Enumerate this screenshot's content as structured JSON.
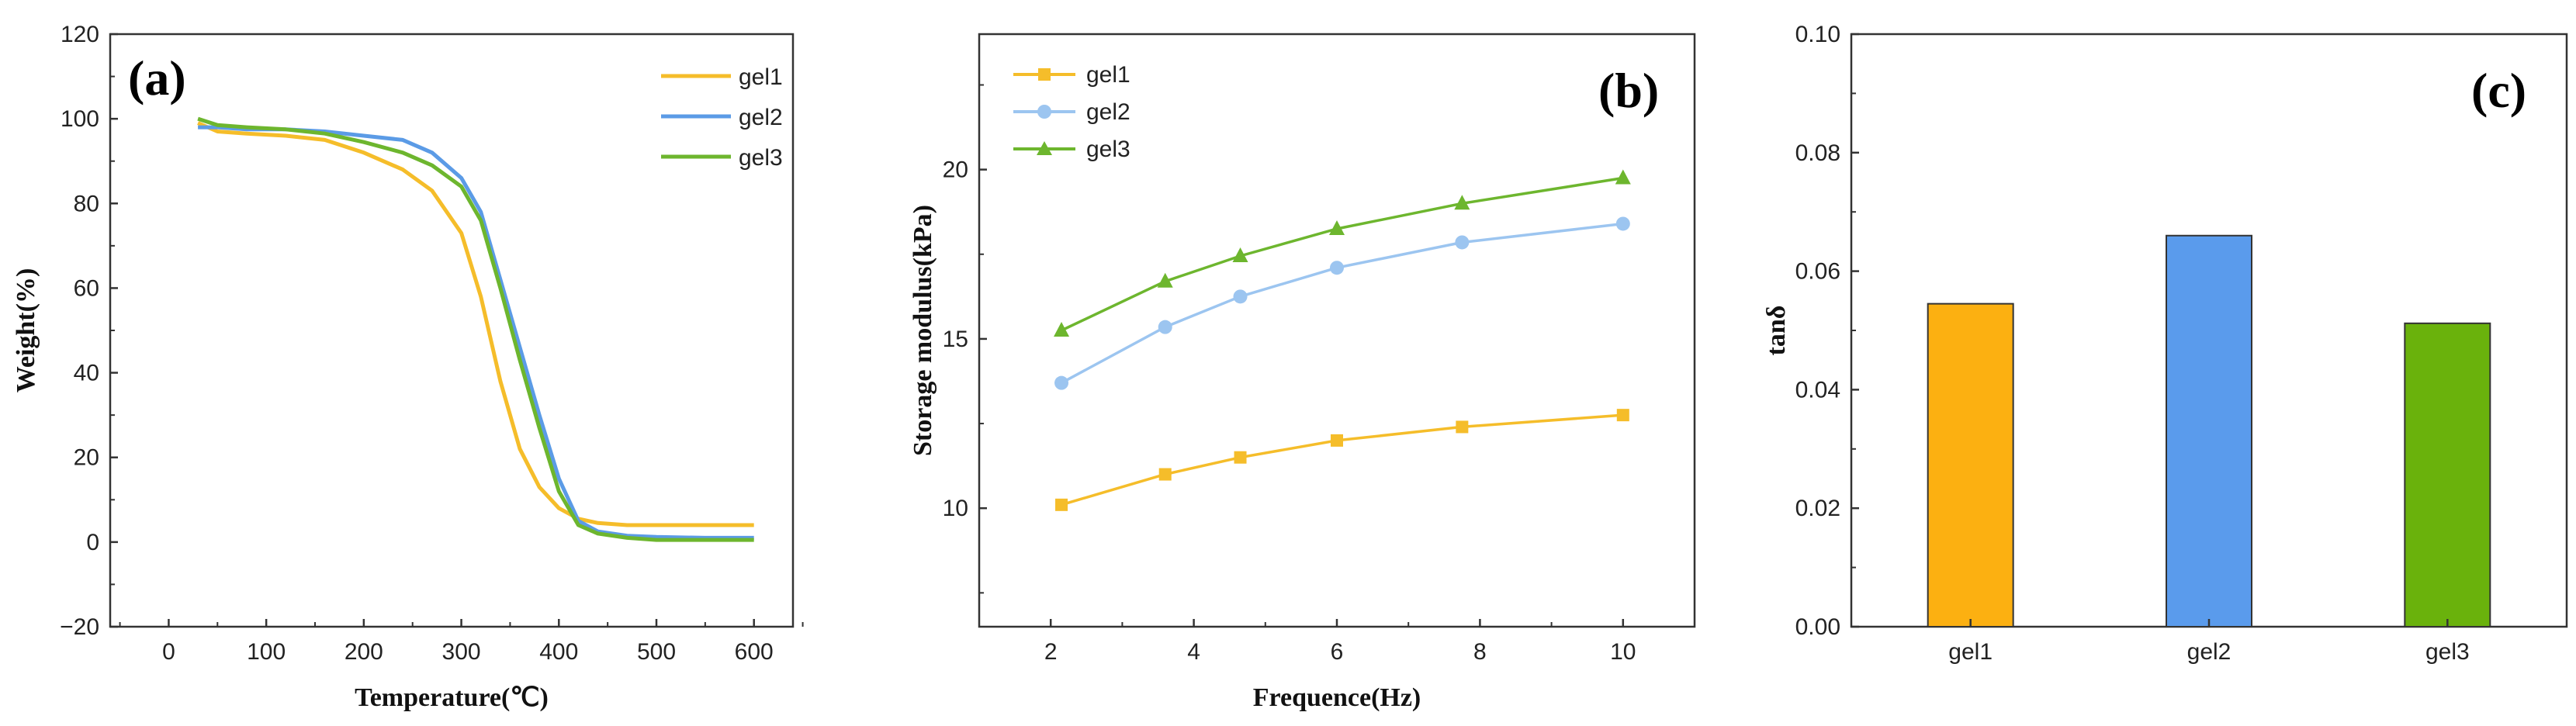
{
  "chart_data": [
    {
      "type": "line",
      "panel_label": "(a)",
      "xlabel": "Temperature(℃)",
      "ylabel": "Weight(%)",
      "xlim": [
        -60,
        640
      ],
      "ylim": [
        -20,
        120
      ],
      "xticks": [
        "0",
        "100",
        "200",
        "300",
        "400",
        "500",
        "600"
      ],
      "yticks": [
        "−20",
        "0",
        "20",
        "40",
        "60",
        "80",
        "100",
        "120"
      ],
      "legend": "top-right",
      "series": [
        {
          "name": "gel1",
          "color": "#F5BD2A",
          "x": [
            30,
            50,
            80,
            120,
            160,
            200,
            240,
            270,
            300,
            320,
            340,
            360,
            380,
            400,
            420,
            440,
            470,
            500,
            550,
            600
          ],
          "y": [
            99,
            97,
            96.5,
            96,
            95,
            92,
            88,
            83,
            73,
            58,
            38,
            22,
            13,
            8,
            5.5,
            4.5,
            4,
            4,
            4,
            4
          ]
        },
        {
          "name": "gel2",
          "color": "#5B9BE6",
          "x": [
            30,
            50,
            80,
            120,
            160,
            200,
            240,
            270,
            300,
            320,
            340,
            360,
            380,
            400,
            420,
            440,
            470,
            500,
            550,
            600
          ],
          "y": [
            98,
            98,
            97.5,
            97.5,
            97,
            96,
            95,
            92,
            86,
            78,
            62,
            46,
            30,
            15,
            5,
            2.5,
            1.5,
            1.2,
            1,
            1
          ]
        },
        {
          "name": "gel3",
          "color": "#6DB62E",
          "x": [
            30,
            50,
            80,
            120,
            160,
            200,
            240,
            270,
            300,
            320,
            340,
            360,
            380,
            400,
            420,
            440,
            470,
            500,
            550,
            600
          ],
          "y": [
            100,
            98.5,
            98,
            97.5,
            96.5,
            94.5,
            92,
            89,
            84,
            76,
            60,
            43,
            27,
            12,
            4,
            2,
            1,
            0.5,
            0.5,
            0.5
          ]
        }
      ]
    },
    {
      "type": "line",
      "panel_label": "(b)",
      "xlabel": "Frequence(Hz)",
      "ylabel": "Storage modulus(kPa)",
      "xlim": [
        1,
        11
      ],
      "ylim": [
        6.5,
        24
      ],
      "xticks": [
        "2",
        "4",
        "6",
        "8",
        "10"
      ],
      "yticks": [
        "10",
        "15",
        "20"
      ],
      "legend": "top-left",
      "series": [
        {
          "name": "gel1",
          "color": "#F5BD2A",
          "marker": "square",
          "x": [
            2.15,
            3.6,
            4.65,
            6,
            7.75,
            10
          ],
          "y": [
            10.1,
            11.0,
            11.5,
            12.0,
            12.4,
            12.75
          ]
        },
        {
          "name": "gel2",
          "color": "#9CC5F0",
          "marker": "circle",
          "x": [
            2.15,
            3.6,
            4.65,
            6,
            7.75,
            10
          ],
          "y": [
            13.7,
            15.35,
            16.25,
            17.1,
            17.85,
            18.4
          ]
        },
        {
          "name": "gel3",
          "color": "#6DB62E",
          "marker": "triangle",
          "x": [
            2.15,
            3.6,
            4.65,
            6,
            7.75,
            10
          ],
          "y": [
            15.25,
            16.7,
            17.45,
            18.25,
            19.0,
            19.75
          ]
        }
      ]
    },
    {
      "type": "bar",
      "panel_label": "(c)",
      "xlabel": "",
      "ylabel": "tanδ",
      "ylim": [
        0,
        0.1
      ],
      "yticks": [
        "0.00",
        "0.02",
        "0.04",
        "0.06",
        "0.08",
        "0.10"
      ],
      "categories": [
        "gel1",
        "gel2",
        "gel3"
      ],
      "values": [
        0.0545,
        0.066,
        0.0512
      ],
      "colors": [
        "#FCB011",
        "#5A9BEC",
        "#6AB20C"
      ]
    }
  ]
}
